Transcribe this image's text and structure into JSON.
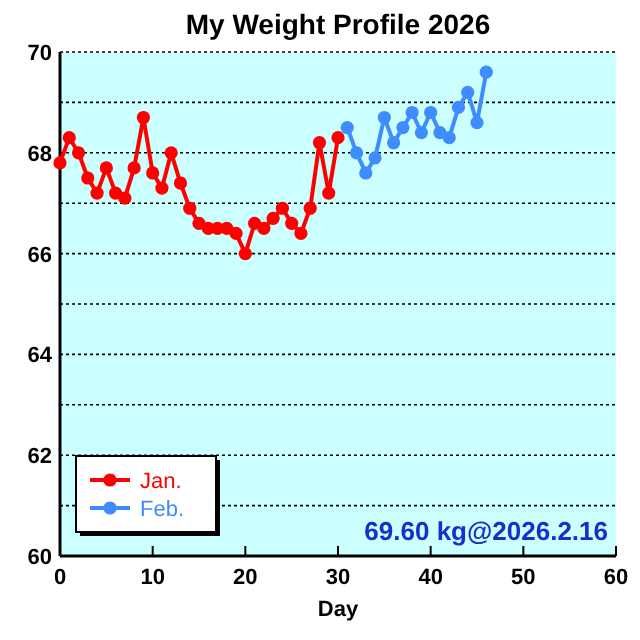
{
  "chart_data": {
    "type": "line",
    "title": "My Weight Profile 2026",
    "xlabel": "Day",
    "xlim": [
      0,
      60
    ],
    "xticks": [
      0,
      10,
      20,
      30,
      40,
      50,
      60
    ],
    "ylim": [
      60,
      70
    ],
    "yticks": [
      60,
      {
        "value": 61,
        "label": null
      },
      62,
      {
        "value": 63,
        "label": null
      },
      64,
      {
        "value": 65,
        "label": null
      },
      66,
      {
        "value": 67,
        "label": null
      },
      68,
      {
        "value": 69,
        "label": null
      },
      70
    ],
    "grid": "y",
    "legend": "bottom left",
    "marker": "circle",
    "line_style": "solid",
    "annotations": [
      "69.60 kg@2026.2.16"
    ],
    "series": [
      {
        "name": "Jan.",
        "color": "#ff0000",
        "x": [
          0,
          1,
          2,
          3,
          4,
          5,
          6,
          7,
          8,
          9,
          10,
          11,
          12,
          13,
          14,
          15,
          16,
          17,
          18,
          19,
          20,
          21,
          22,
          23,
          24,
          25,
          26,
          27,
          28,
          29,
          30
        ],
        "values": [
          67.8,
          68.3,
          68.0,
          67.5,
          67.2,
          67.7,
          67.2,
          67.1,
          67.7,
          68.7,
          67.6,
          67.3,
          68.0,
          67.4,
          66.9,
          66.6,
          66.5,
          66.5,
          66.5,
          66.4,
          66.0,
          66.6,
          66.5,
          66.7,
          66.9,
          66.6,
          66.4,
          66.9,
          68.2,
          67.2,
          68.3
        ]
      },
      {
        "name": "Feb.",
        "color": "#3f8cff",
        "x": [
          31,
          32,
          33,
          34,
          35,
          36,
          37,
          38,
          39,
          40,
          41,
          42,
          43,
          44,
          45,
          46
        ],
        "values": [
          68.5,
          68.0,
          67.6,
          67.9,
          68.7,
          68.2,
          68.5,
          68.8,
          68.4,
          68.8,
          68.4,
          68.3,
          68.9,
          69.2,
          68.6,
          69.6
        ]
      }
    ]
  }
}
